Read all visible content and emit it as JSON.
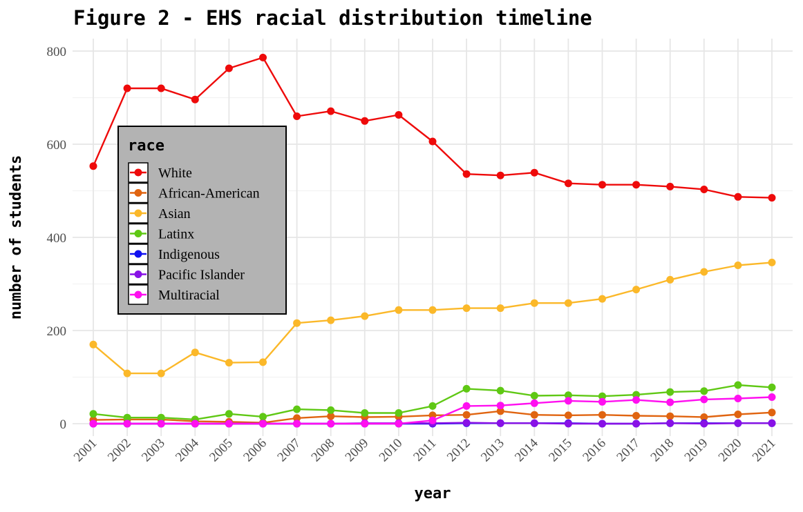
{
  "chart_data": {
    "type": "line",
    "title": "Figure 2 - EHS racial distribution timeline",
    "xlabel": "year",
    "ylabel": "number of students",
    "x": [
      2001,
      2002,
      2003,
      2004,
      2005,
      2006,
      2007,
      2008,
      2009,
      2010,
      2011,
      2012,
      2013,
      2014,
      2015,
      2016,
      2017,
      2018,
      2019,
      2020,
      2021
    ],
    "x_tick_labels": [
      "2001",
      "2002",
      "2003",
      "2004",
      "2005",
      "2006",
      "2007",
      "2008",
      "2009",
      "2010",
      "2011",
      "2012",
      "2013",
      "2014",
      "2015",
      "2016",
      "2017",
      "2018",
      "2019",
      "2020",
      "2021"
    ],
    "ylim": [
      0,
      800
    ],
    "y_ticks": [
      0,
      200,
      400,
      600,
      800
    ],
    "grid": true,
    "legend": {
      "title": "race",
      "placement": "left"
    },
    "series": [
      {
        "name": "White",
        "color": "#ee0a0a",
        "values": [
          553,
          720,
          720,
          696,
          763,
          786,
          660,
          671,
          650,
          663,
          606,
          536,
          533,
          539,
          516,
          513,
          513,
          509,
          503,
          487,
          485
        ]
      },
      {
        "name": "African-American",
        "color": "#e06410",
        "values": [
          8,
          9,
          9,
          5,
          4,
          2,
          12,
          16,
          14,
          15,
          18,
          19,
          27,
          19,
          18,
          19,
          17,
          16,
          14,
          20,
          24
        ]
      },
      {
        "name": "Asian",
        "color": "#fbb829",
        "values": [
          170,
          108,
          108,
          153,
          131,
          132,
          216,
          222,
          231,
          244,
          244,
          248,
          248,
          259,
          259,
          268,
          288,
          309,
          326,
          340,
          346
        ]
      },
      {
        "name": "Latinx",
        "color": "#5fc814",
        "values": [
          21,
          13,
          13,
          9,
          21,
          15,
          31,
          29,
          23,
          23,
          38,
          75,
          71,
          60,
          61,
          59,
          62,
          68,
          70,
          83,
          78
        ]
      },
      {
        "name": "Indigenous",
        "color": "#1010f0",
        "values": [
          0,
          0,
          0,
          0,
          0,
          0,
          0,
          0,
          0,
          0,
          0,
          1,
          1,
          1,
          1,
          0,
          0,
          1,
          1,
          1,
          1
        ]
      },
      {
        "name": "Pacific Islander",
        "color": "#8811e6",
        "values": [
          0,
          0,
          0,
          0,
          0,
          0,
          0,
          0,
          1,
          1,
          1,
          2,
          1,
          1,
          0,
          0,
          0,
          1,
          0,
          1,
          1
        ]
      },
      {
        "name": "Multiracial",
        "color": "#ff0ff0",
        "values": [
          0,
          0,
          0,
          0,
          0,
          0,
          0,
          0,
          0,
          0,
          7,
          38,
          39,
          44,
          49,
          47,
          51,
          46,
          52,
          54,
          57
        ]
      }
    ]
  }
}
